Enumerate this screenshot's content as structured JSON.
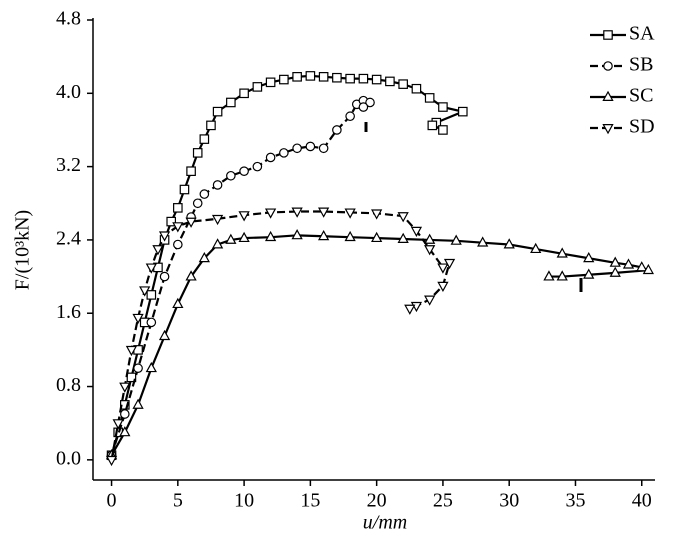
{
  "chart_data": {
    "type": "line",
    "x_label": "u/mm",
    "y_label": "F/(10³kN)",
    "xlim": [
      -1.4,
      41
    ],
    "ylim": [
      -0.22,
      4.8
    ],
    "xticks": [
      0,
      5,
      10,
      15,
      20,
      25,
      30,
      35,
      40
    ],
    "yticks": [
      {
        "value": 0,
        "label": "0.0"
      },
      0.8,
      1.6,
      2.4,
      3.2,
      {
        "value": 4,
        "label": "4.0"
      },
      4.8
    ],
    "legend": "upper right",
    "series": [
      {
        "name": "SA",
        "color": "#000000",
        "line_style": "solid",
        "marker": "square",
        "x": [
          0,
          0.5,
          1,
          1.5,
          2,
          2.5,
          3,
          3.5,
          4,
          4.5,
          5,
          5.5,
          6,
          6.5,
          7,
          7.5,
          8,
          9,
          10,
          11,
          12,
          13,
          14,
          15,
          16,
          17,
          18,
          19,
          20,
          21,
          22,
          23,
          24,
          25,
          26.5,
          24.5,
          25,
          24.2
        ],
        "values": [
          0.05,
          0.3,
          0.6,
          0.9,
          1.2,
          1.5,
          1.8,
          2.1,
          2.4,
          2.6,
          2.75,
          2.95,
          3.15,
          3.35,
          3.5,
          3.65,
          3.8,
          3.9,
          4.0,
          4.07,
          4.12,
          4.15,
          4.18,
          4.19,
          4.18,
          4.17,
          4.16,
          4.16,
          4.15,
          4.13,
          4.1,
          4.05,
          3.95,
          3.85,
          3.8,
          3.68,
          3.6,
          3.65
        ]
      },
      {
        "name": "SB",
        "color": "#000000",
        "line_style": "dashed",
        "marker": "circle",
        "x": [
          0,
          1,
          2,
          3,
          4,
          5,
          6,
          6.5,
          7,
          8,
          9,
          10,
          11,
          12,
          13,
          14,
          15,
          16,
          17,
          18,
          18.5,
          19,
          19.5,
          19
        ],
        "values": [
          0.05,
          0.5,
          1.0,
          1.5,
          2.0,
          2.35,
          2.65,
          2.8,
          2.9,
          3.0,
          3.1,
          3.15,
          3.2,
          3.3,
          3.35,
          3.4,
          3.42,
          3.4,
          3.6,
          3.75,
          3.88,
          3.92,
          3.9,
          3.85
        ]
      },
      {
        "name": "SC",
        "color": "#000000",
        "line_style": "solid",
        "marker": "triangle-up",
        "x": [
          0,
          1,
          2,
          3,
          4,
          5,
          6,
          7,
          8,
          9,
          10,
          12,
          14,
          16,
          18,
          20,
          22,
          24,
          26,
          28,
          30,
          32,
          34,
          36,
          38,
          39,
          40,
          40.5,
          38,
          36,
          34,
          33
        ],
        "values": [
          0.05,
          0.3,
          0.6,
          1.0,
          1.35,
          1.7,
          2.0,
          2.2,
          2.35,
          2.4,
          2.42,
          2.43,
          2.45,
          2.44,
          2.43,
          2.42,
          2.41,
          2.4,
          2.39,
          2.37,
          2.35,
          2.3,
          2.25,
          2.2,
          2.15,
          2.13,
          2.1,
          2.07,
          2.04,
          2.02,
          2.0,
          2.0
        ]
      },
      {
        "name": "SD",
        "color": "#000000",
        "line_style": "dashed",
        "marker": "triangle-down",
        "x": [
          0,
          0.5,
          1,
          1.5,
          2,
          2.5,
          3,
          3.5,
          4,
          5,
          6,
          8,
          10,
          12,
          14,
          16,
          18,
          20,
          22,
          23,
          24,
          25,
          25.5,
          25,
          24,
          23,
          22.5
        ],
        "values": [
          0.0,
          0.4,
          0.8,
          1.2,
          1.55,
          1.85,
          2.1,
          2.3,
          2.45,
          2.55,
          2.6,
          2.63,
          2.67,
          2.7,
          2.71,
          2.71,
          2.7,
          2.69,
          2.66,
          2.5,
          2.3,
          2.1,
          2.15,
          1.9,
          1.75,
          1.68,
          1.65
        ]
      }
    ]
  }
}
